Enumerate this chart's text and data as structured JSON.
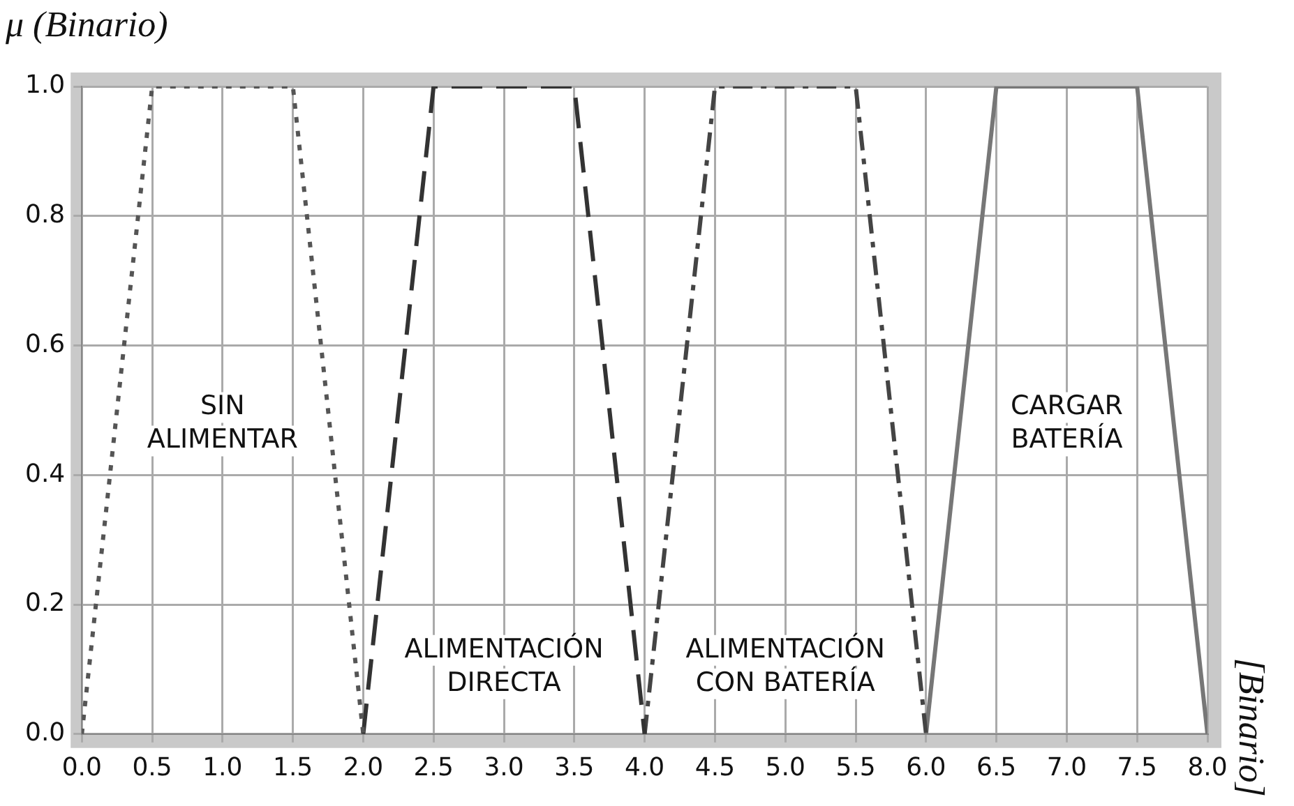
{
  "chart_data": {
    "type": "line",
    "ylabel": "μ (Binario)",
    "annotations": [
      "[Binario]"
    ],
    "xlim": [
      0,
      8
    ],
    "ylim": [
      0,
      1
    ],
    "xticks": [
      {
        "value": 0,
        "label": "0.0"
      },
      {
        "value": 0.5,
        "label": "0.5"
      },
      {
        "value": 1,
        "label": "1.0"
      },
      {
        "value": 1.5,
        "label": "1.5"
      },
      {
        "value": 2,
        "label": "2.0"
      },
      {
        "value": 2.5,
        "label": "2.5"
      },
      {
        "value": 3,
        "label": "3.0"
      },
      {
        "value": 3.5,
        "label": "3.5"
      },
      {
        "value": 4,
        "label": "4.0"
      },
      {
        "value": 4.5,
        "label": "4.5"
      },
      {
        "value": 5,
        "label": "5.0"
      },
      {
        "value": 5.5,
        "label": "5.5"
      },
      {
        "value": 6,
        "label": "6.0"
      },
      {
        "value": 6.5,
        "label": "6.5"
      },
      {
        "value": 7,
        "label": "7.0"
      },
      {
        "value": 7.5,
        "label": "7.5"
      },
      {
        "value": 8,
        "label": "8.0"
      }
    ],
    "yticks": [
      {
        "value": 0,
        "label": "0.0"
      },
      {
        "value": 0.2,
        "label": "0.2"
      },
      {
        "value": 0.4,
        "label": "0.4"
      },
      {
        "value": 0.6,
        "label": "0.6"
      },
      {
        "value": 0.8,
        "label": "0.8"
      },
      {
        "value": 1,
        "label": "1.0"
      }
    ],
    "grid": true,
    "legend": false,
    "marker": "none",
    "series": [
      {
        "name": "SIN\nALIMENTAR",
        "color": "#555555",
        "line_style": "dotted",
        "x": [
          0,
          0.5,
          1.5,
          2
        ],
        "values": [
          0,
          1,
          1,
          0
        ]
      },
      {
        "name": "ALIMENTACIÓN\nDIRECTA",
        "color": "#333333",
        "line_style": "dashed",
        "x": [
          2,
          2.5,
          3.5,
          4
        ],
        "values": [
          0,
          1,
          1,
          0
        ]
      },
      {
        "name": "ALIMENTACIÓN\nCON BATERÍA",
        "color": "#444444",
        "line_style": "dashdot",
        "x": [
          4,
          4.5,
          5.5,
          6
        ],
        "values": [
          0,
          1,
          1,
          0
        ]
      },
      {
        "name": "CARGAR\nBATERÍA",
        "color": "#777777",
        "line_style": "solid",
        "x": [
          6,
          6.5,
          7.5,
          8
        ],
        "values": [
          0,
          1,
          1,
          0
        ]
      }
    ]
  }
}
